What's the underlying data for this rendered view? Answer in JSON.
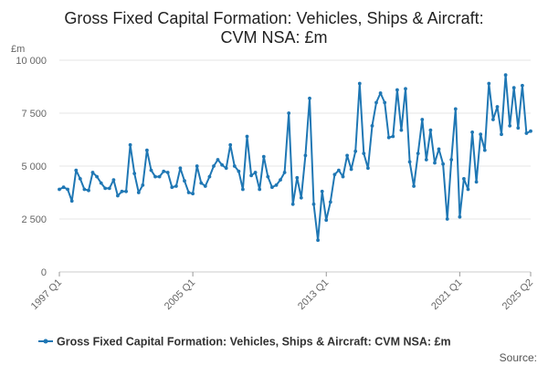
{
  "chart_data": {
    "type": "line",
    "title_line1": "Gross Fixed Capital Formation: Vehicles, Ships & Aircraft:",
    "title_line2": "CVM NSA: £m",
    "unit_label": "£m",
    "y_ticks": [
      0,
      2500,
      5000,
      7500,
      10000
    ],
    "y_tick_labels": [
      "0",
      "2 500",
      "5 000",
      "7 500",
      "10 000"
    ],
    "ylim": [
      0,
      10000
    ],
    "x_tick_labels": [
      "1997 Q1",
      "2005 Q1",
      "2013 Q1",
      "2021 Q1",
      "2025 Q2"
    ],
    "x_tick_quarters": [
      "1997 Q1",
      "2005 Q1",
      "2013 Q1",
      "2021 Q1",
      "2025 Q2"
    ],
    "legend_position": "bottom",
    "source_label": "Source:",
    "color": "#1f77b4",
    "grid": true,
    "x_start": "1997 Q1",
    "x_end": "2025 Q2",
    "series": [
      {
        "name": "Gross Fixed Capital Formation: Vehicles, Ships & Aircraft: CVM NSA: £m",
        "values": [
          3900,
          4000,
          3900,
          3350,
          4800,
          4400,
          3900,
          3850,
          4700,
          4500,
          4200,
          3950,
          3950,
          4350,
          3600,
          3800,
          3800,
          6000,
          4650,
          3750,
          4100,
          5750,
          4800,
          4500,
          4500,
          4750,
          4700,
          4000,
          4050,
          4900,
          4300,
          3750,
          3700,
          5000,
          4200,
          4050,
          4500,
          5000,
          5300,
          5050,
          4900,
          6000,
          5000,
          4750,
          3900,
          6400,
          4550,
          4700,
          3900,
          5450,
          4500,
          4000,
          4100,
          4350,
          4700,
          7500,
          3200,
          4450,
          3500,
          5500,
          8200,
          3200,
          1500,
          3800,
          2450,
          3300,
          4600,
          4800,
          4500,
          5500,
          4850,
          5700,
          8900,
          5600,
          4900,
          6900,
          8000,
          8450,
          8000,
          6350,
          6400,
          8600,
          6700,
          8650,
          5200,
          4050,
          5600,
          7200,
          5300,
          6700,
          5150,
          5800,
          5100,
          2500,
          5300,
          7700,
          2600,
          4400,
          3900,
          6600,
          4250,
          6500,
          5750,
          8900,
          7200,
          7800,
          6500,
          9300,
          6900,
          8700,
          6800,
          8800,
          6550,
          6650
        ]
      }
    ]
  }
}
